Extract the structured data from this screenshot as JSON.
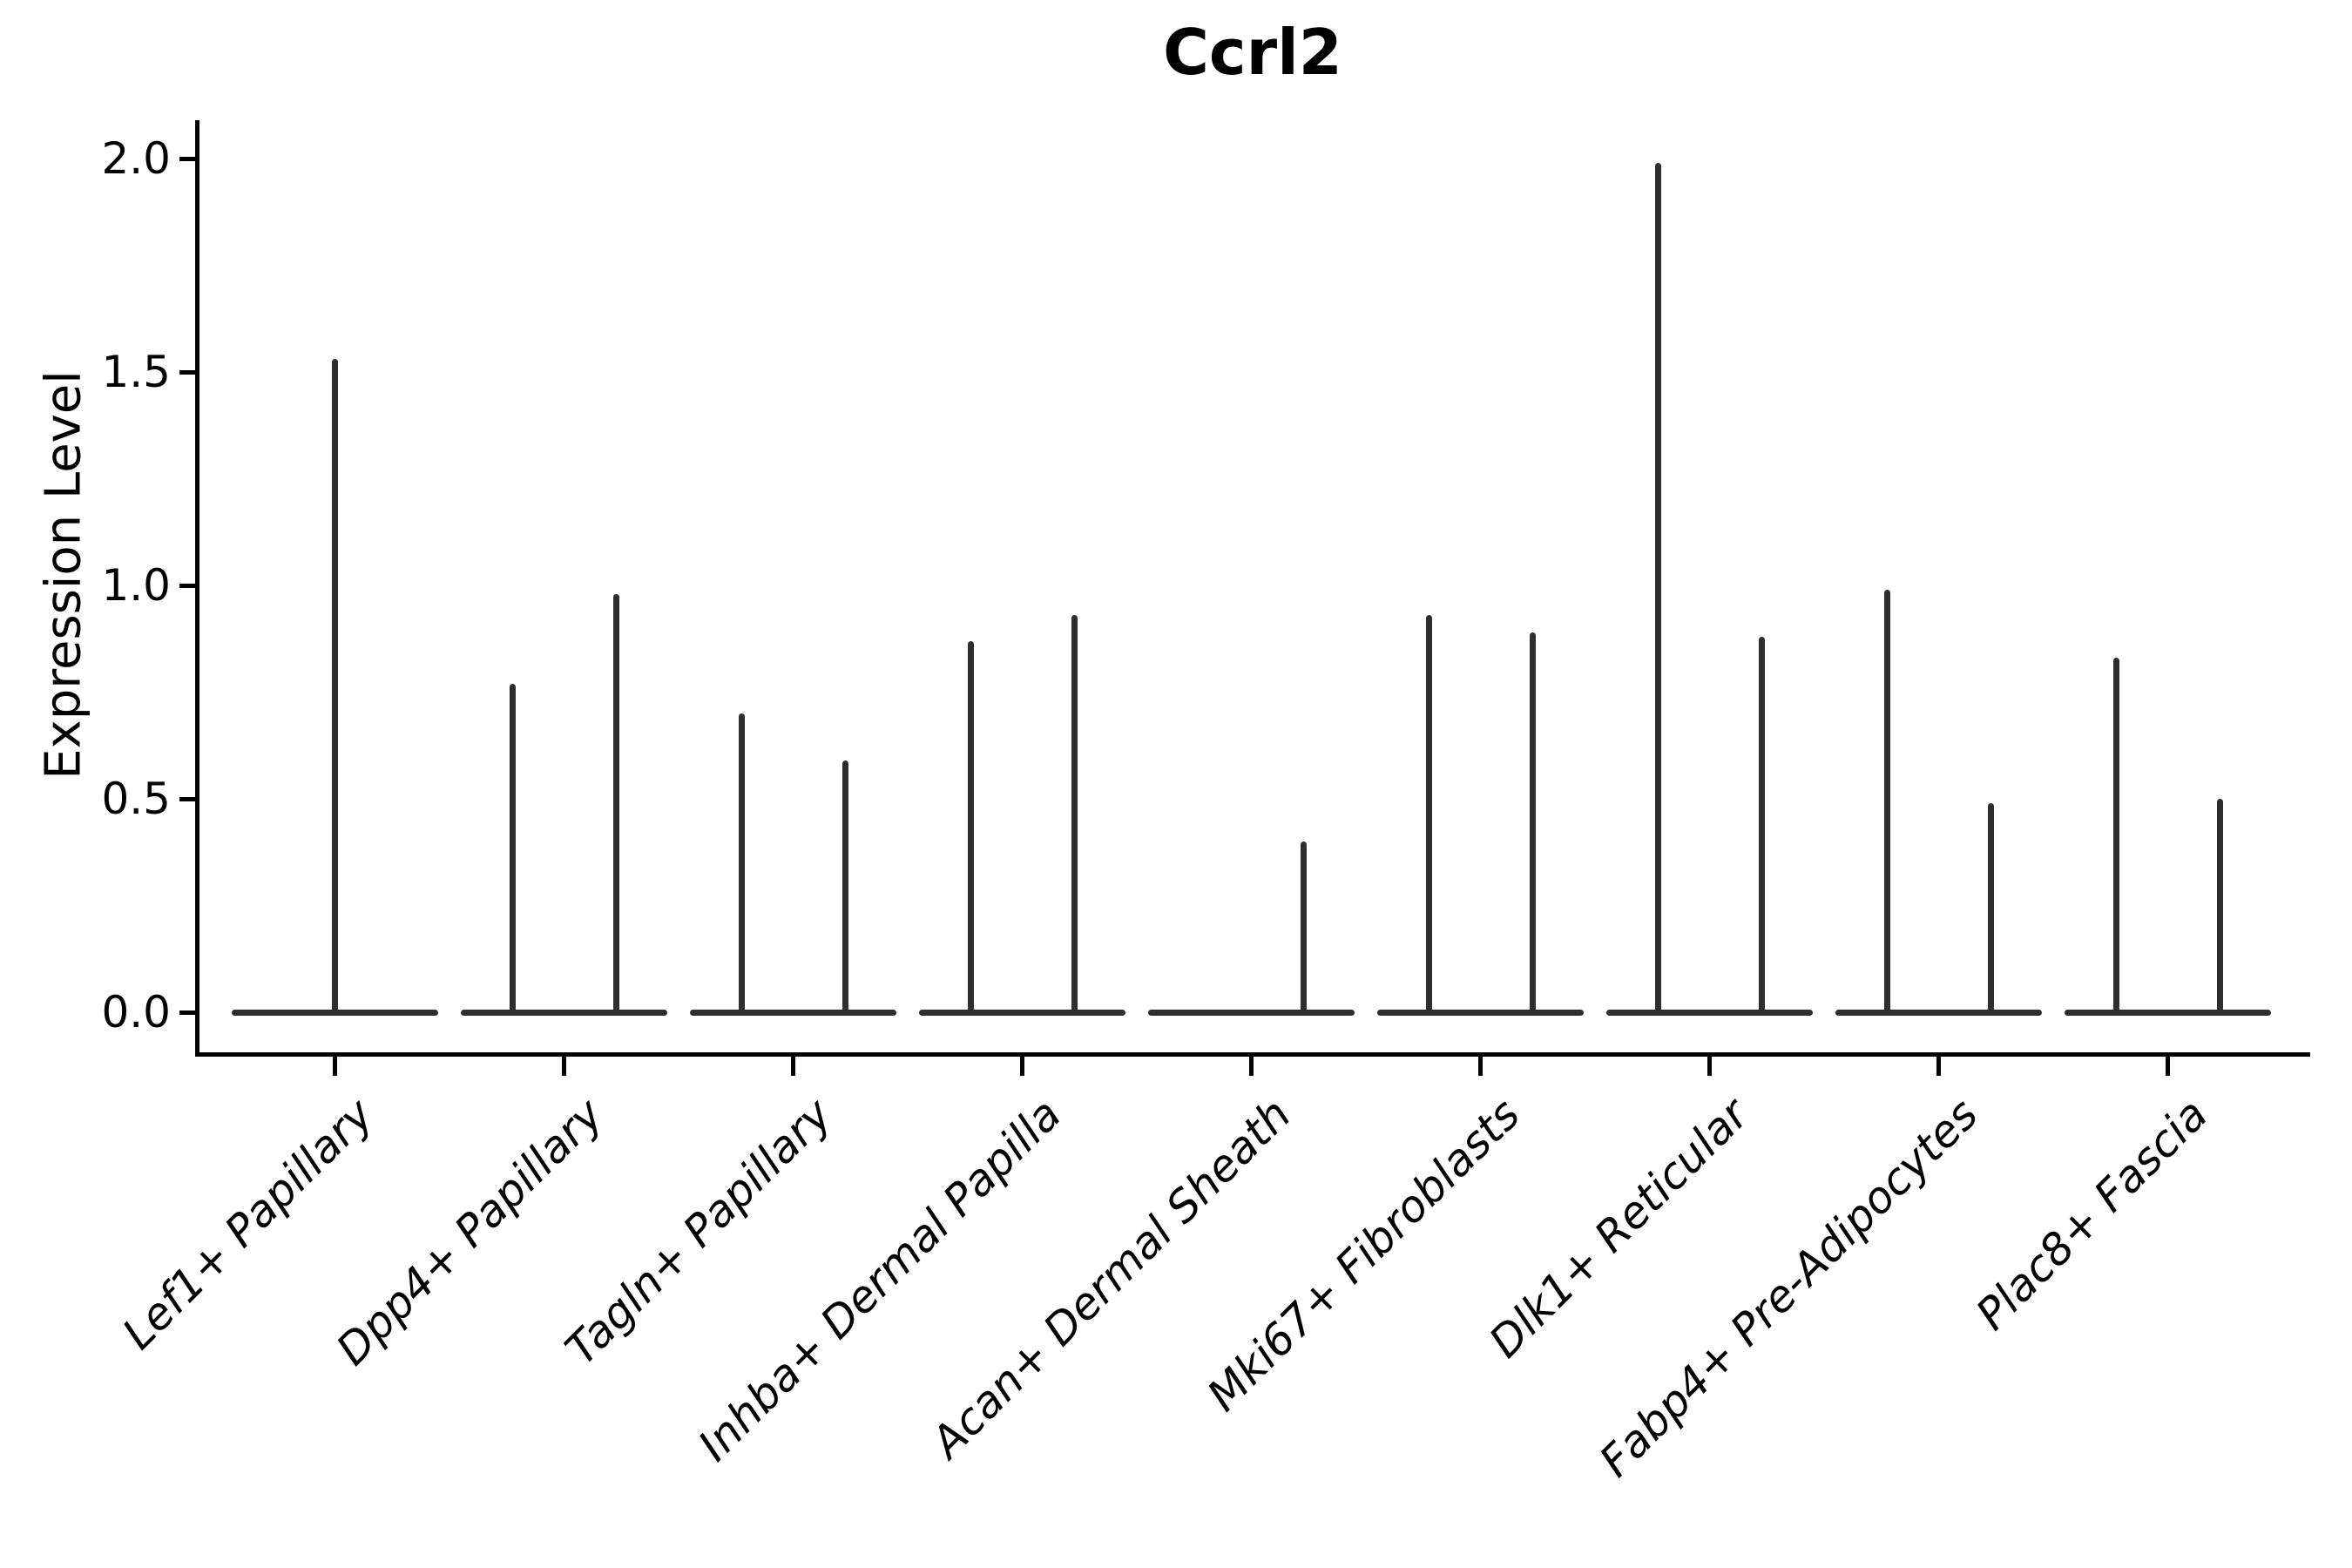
{
  "figure": {
    "title": "Ccrl2",
    "ylabel": "Expression Level"
  },
  "chart_data": {
    "type": "violin",
    "title": "Ccrl2",
    "xlabel": "",
    "ylabel": "Expression Level",
    "ylim": [
      0,
      2.05
    ],
    "ytick_labels": [
      "0.0",
      "0.5",
      "1.0",
      "1.5",
      "2.0"
    ],
    "ytick_values": [
      0.0,
      0.5,
      1.0,
      1.5,
      2.0
    ],
    "grid": false,
    "legend": null,
    "background": "#ffffff",
    "stroke_color": "#2e2e2e",
    "text_color": "#000000",
    "baseline_value": 0.0,
    "categories": [
      "Lef1+ Papillary",
      "Dpp4+ Papillary",
      "Tagln+ Papillary",
      "Inhba+ Dermal Papilla",
      "Acan+ Dermal Sheath",
      "Mki67+ Fibroblasts",
      "Dlk1+ Reticular",
      "Fabp4+ Pre-Adipocytes",
      "Plac8+ Fascia"
    ],
    "violins": [
      {
        "category": "Lef1+ Papillary",
        "spikes": [
          {
            "side": "center",
            "max": 1.53
          }
        ]
      },
      {
        "category": "Dpp4+ Papillary",
        "spikes": [
          {
            "side": "left",
            "max": 0.77
          },
          {
            "side": "right",
            "max": 0.98
          }
        ]
      },
      {
        "category": "Tagln+ Papillary",
        "spikes": [
          {
            "side": "left",
            "max": 0.7
          },
          {
            "side": "right",
            "max": 0.59
          }
        ]
      },
      {
        "category": "Inhba+ Dermal Papilla",
        "spikes": [
          {
            "side": "left",
            "max": 0.87
          },
          {
            "side": "right",
            "max": 0.93
          }
        ]
      },
      {
        "category": "Acan+ Dermal Sheath",
        "spikes": [
          {
            "side": "right",
            "max": 0.4
          }
        ]
      },
      {
        "category": "Mki67+ Fibroblasts",
        "spikes": [
          {
            "side": "left",
            "max": 0.93
          },
          {
            "side": "right",
            "max": 0.89
          }
        ]
      },
      {
        "category": "Dlk1+ Reticular",
        "spikes": [
          {
            "side": "left",
            "max": 1.99
          },
          {
            "side": "right",
            "max": 0.88
          }
        ]
      },
      {
        "category": "Fabp4+ Pre-Adipocytes",
        "spikes": [
          {
            "side": "left",
            "max": 0.99
          },
          {
            "side": "right",
            "max": 0.49
          }
        ]
      },
      {
        "category": "Plac8+ Fascia",
        "spikes": [
          {
            "side": "left",
            "max": 0.83
          },
          {
            "side": "right",
            "max": 0.5
          }
        ]
      }
    ]
  }
}
